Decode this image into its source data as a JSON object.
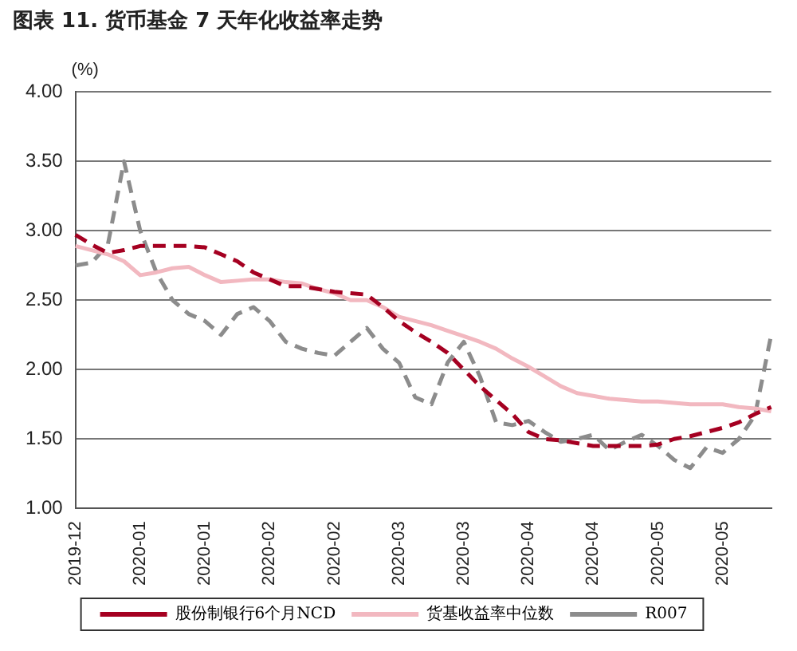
{
  "chart_data": {
    "type": "line",
    "title": "图表 11. 货币基金 7 天年化收益率走势",
    "ylabel": "(%)",
    "categories": [
      "2019-12",
      null,
      null,
      null,
      "2020-01",
      null,
      null,
      null,
      "2020-01",
      null,
      null,
      null,
      "2020-02",
      null,
      null,
      null,
      "2020-02",
      null,
      null,
      null,
      "2020-03",
      null,
      null,
      null,
      "2020-03",
      null,
      null,
      null,
      "2020-04",
      null,
      null,
      null,
      "2020-04",
      null,
      null,
      null,
      "2020-05",
      null,
      null,
      null,
      "2020-05",
      null,
      null,
      null
    ],
    "series": [
      {
        "name": "股份制银行6个月NCD",
        "color": "#a50021",
        "line_style": "dashed",
        "values": [
          2.97,
          2.9,
          2.84,
          2.86,
          2.89,
          2.89,
          2.89,
          2.89,
          2.88,
          2.83,
          2.78,
          2.7,
          2.65,
          2.6,
          2.6,
          2.58,
          2.56,
          2.55,
          2.54,
          2.45,
          2.35,
          2.27,
          2.2,
          2.12,
          2.0,
          1.88,
          1.78,
          1.68,
          1.55,
          1.5,
          1.49,
          1.47,
          1.45,
          1.45,
          1.45,
          1.45,
          1.46,
          1.5,
          1.52,
          1.55,
          1.58,
          1.62,
          1.68,
          1.73
        ]
      },
      {
        "name": "货基收益率中位数",
        "color": "#f2b8c0",
        "line_style": "solid",
        "values": [
          2.89,
          2.86,
          2.83,
          2.78,
          2.68,
          2.7,
          2.73,
          2.74,
          2.68,
          2.63,
          2.64,
          2.65,
          2.65,
          2.63,
          2.62,
          2.58,
          2.55,
          2.5,
          2.5,
          2.45,
          2.38,
          2.35,
          2.32,
          2.28,
          2.24,
          2.2,
          2.15,
          2.08,
          2.02,
          1.95,
          1.88,
          1.83,
          1.81,
          1.79,
          1.78,
          1.77,
          1.77,
          1.76,
          1.75,
          1.75,
          1.75,
          1.73,
          1.72,
          1.7
        ]
      },
      {
        "name": "R007",
        "color": "#8c8c8c",
        "line_style": "dashed",
        "values": [
          2.75,
          2.77,
          2.9,
          3.5,
          3.0,
          2.7,
          2.5,
          2.4,
          2.35,
          2.25,
          2.4,
          2.45,
          2.35,
          2.2,
          2.15,
          2.12,
          2.1,
          2.2,
          2.3,
          2.15,
          2.05,
          1.8,
          1.75,
          2.05,
          2.2,
          1.95,
          1.62,
          1.6,
          1.63,
          1.55,
          1.48,
          1.5,
          1.53,
          1.42,
          1.48,
          1.53,
          1.45,
          1.35,
          1.29,
          1.44,
          1.4,
          1.5,
          1.67,
          2.25
        ]
      }
    ],
    "ylim": [
      1,
      4
    ],
    "yticks": [
      {
        "value": 1,
        "label": "1.00"
      },
      {
        "value": 1.5,
        "label": "1.50"
      },
      {
        "value": 2,
        "label": "2.00"
      },
      {
        "value": 2.5,
        "label": "2.50"
      },
      {
        "value": 3,
        "label": "3.00"
      },
      {
        "value": 3.5,
        "label": "3.50"
      },
      {
        "value": 4,
        "label": "4.00"
      }
    ],
    "grid": "y",
    "legend": "bottom",
    "marker": "none"
  }
}
